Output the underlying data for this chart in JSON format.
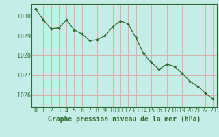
{
  "x": [
    0,
    1,
    2,
    3,
    4,
    5,
    6,
    7,
    8,
    9,
    10,
    11,
    12,
    13,
    14,
    15,
    16,
    17,
    18,
    19,
    20,
    21,
    22,
    23
  ],
  "y": [
    1030.35,
    1029.8,
    1029.35,
    1029.4,
    1029.8,
    1029.3,
    1029.1,
    1028.75,
    1028.8,
    1029.0,
    1029.45,
    1029.75,
    1029.6,
    1028.9,
    1028.1,
    1027.65,
    1027.3,
    1027.55,
    1027.45,
    1027.1,
    1026.7,
    1026.45,
    1026.1,
    1025.8
  ],
  "line_color": "#2d6a2d",
  "marker_color": "#2d6a2d",
  "bg_color": "#c5ede8",
  "grid_color": "#d9b0b0",
  "axis_color": "#2d6a2d",
  "xlabel": "Graphe pression niveau de la mer (hPa)",
  "xlabel_fontsize": 7.0,
  "tick_fontsize": 6.0,
  "ylim": [
    1025.4,
    1030.6
  ],
  "yticks": [
    1026,
    1027,
    1028,
    1029,
    1030
  ],
  "xlim": [
    -0.5,
    23.5
  ]
}
